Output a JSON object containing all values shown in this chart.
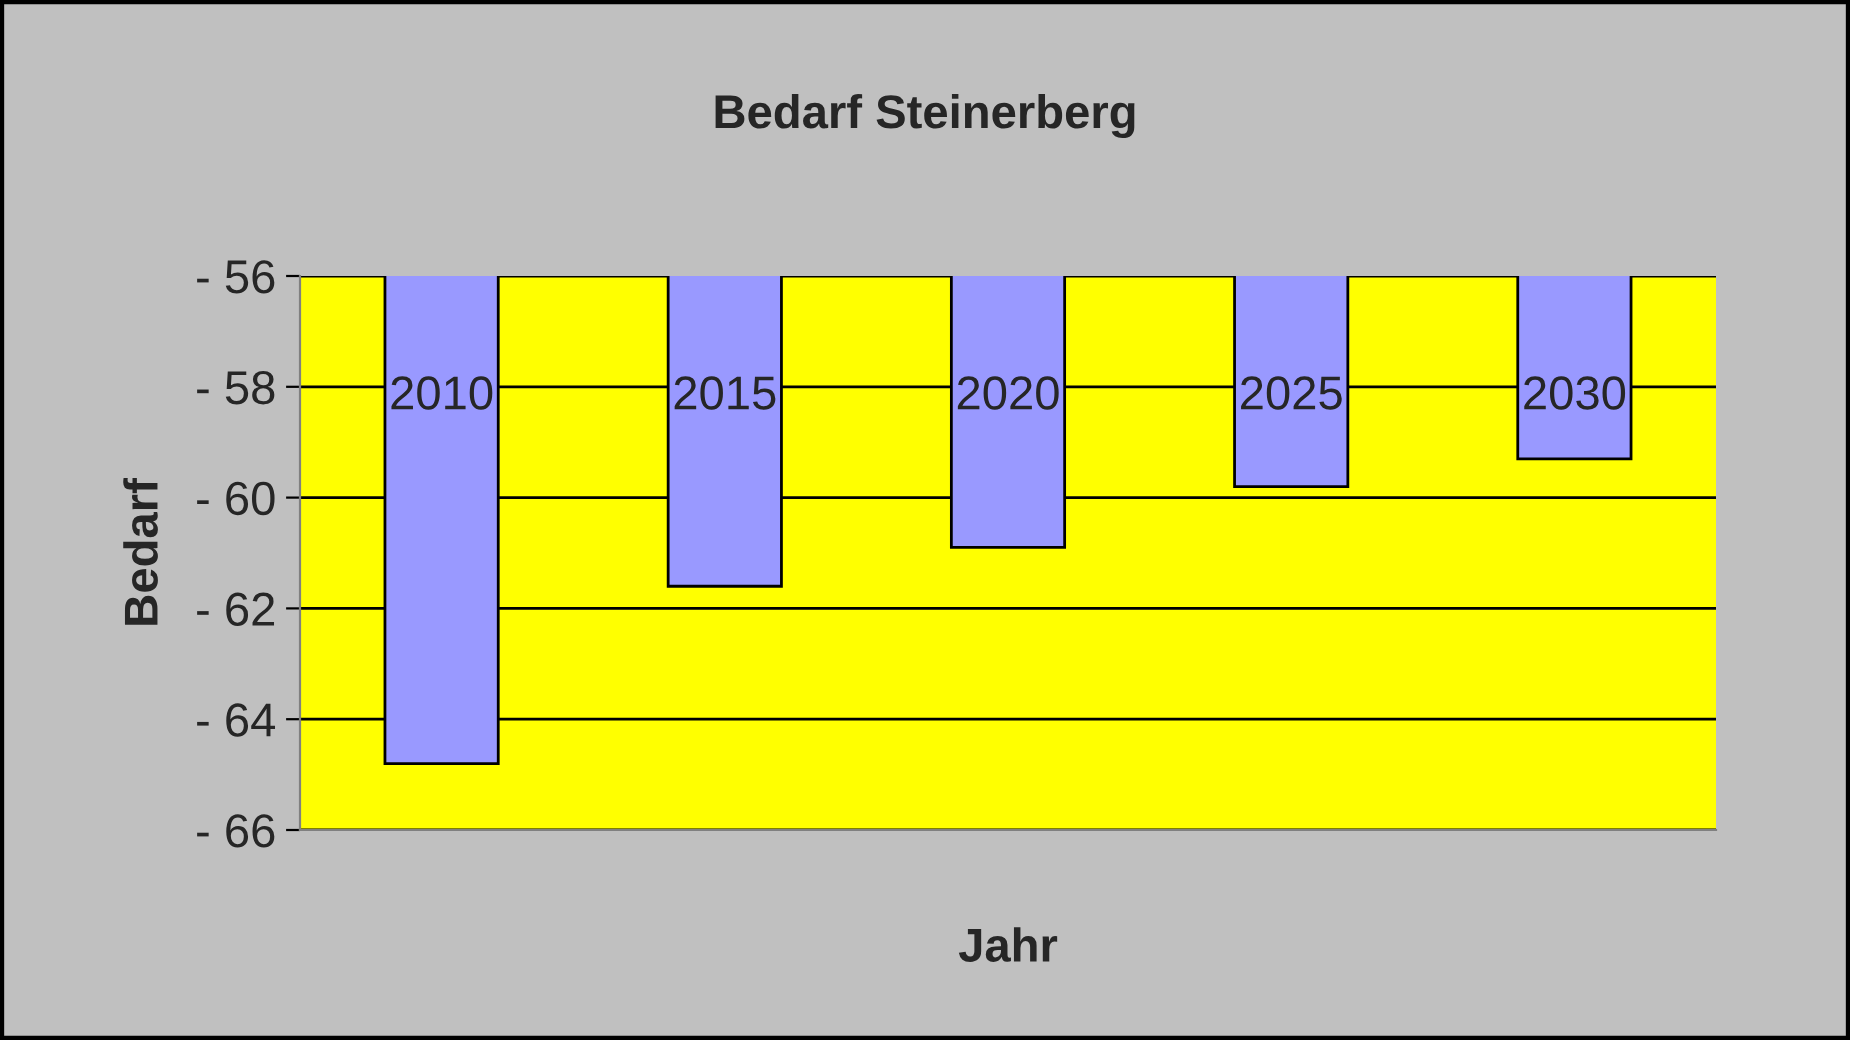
{
  "chart_data": {
    "type": "bar",
    "title": "Bedarf Steinerberg",
    "xlabel": "Jahr",
    "ylabel": "Bedarf",
    "categories": [
      "2010",
      "2015",
      "2020",
      "2025",
      "2030"
    ],
    "series": [
      {
        "color": "#9999ff",
        "values": [
          -64.8,
          -61.6,
          -60.9,
          -59.8,
          -59.3
        ]
      }
    ],
    "ylim": [
      -66,
      -56
    ],
    "yticks": [
      {
        "value": -66,
        "label": "- 66"
      },
      {
        "value": -64,
        "label": "- 64"
      },
      {
        "value": -62,
        "label": "- 62"
      },
      {
        "value": -60,
        "label": "- 60"
      },
      {
        "value": -58,
        "label": "- 58"
      },
      {
        "value": -56,
        "label": "- 56"
      }
    ],
    "grid": "y",
    "legend": false
  }
}
